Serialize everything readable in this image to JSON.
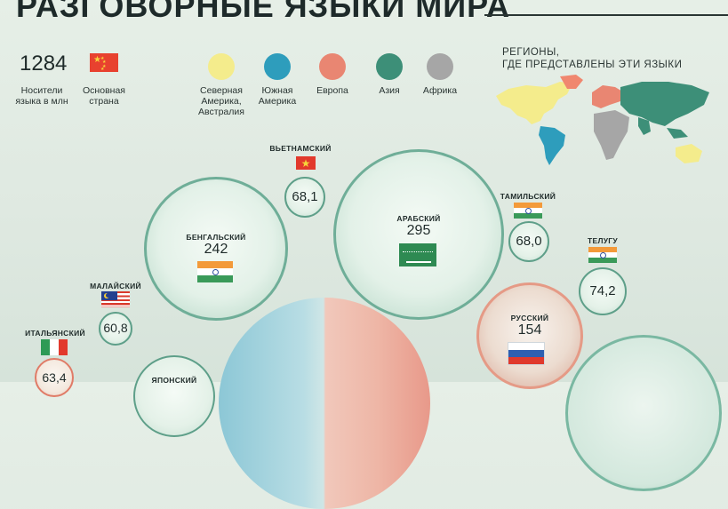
{
  "header": {
    "title": "РАЗГОВОРНЫЕ ЯЗЫКИ МИРА"
  },
  "legend": {
    "speakers_number": "1284",
    "speakers_label_line1": "Носители",
    "speakers_label_line2": "языка в млн",
    "country_label_line1": "Основная",
    "country_label_line2": "страна",
    "country_flag_icon": "china-flag-icon"
  },
  "regions": [
    {
      "line1": "Северная",
      "line2": "Америка,",
      "line3": "Австралия",
      "color": "#f4ec8c"
    },
    {
      "line1": "Южная",
      "line2": "Америка",
      "line3": "",
      "color": "#2e9dbc"
    },
    {
      "line1": "Европа",
      "line2": "",
      "line3": "",
      "color": "#e98672"
    },
    {
      "line1": "Азия",
      "line2": "",
      "line3": "",
      "color": "#3d8f78"
    },
    {
      "line1": "Африка",
      "line2": "",
      "line3": "",
      "color": "#a6a6a6"
    }
  ],
  "map": {
    "title_line1": "РЕГИОНЫ,",
    "title_line2": "ГДЕ ПРЕДСТАВЛЕНЫ ЭТИ ЯЗЫКИ"
  },
  "languages": {
    "vietnamese": {
      "name": "ВЬЕТНАМСКИЙ",
      "value": "68,1",
      "flag": "vietnam-flag-icon"
    },
    "bengali": {
      "name": "БЕНГАЛЬСКИЙ",
      "value": "242",
      "flag": "india-flag-icon"
    },
    "arabic": {
      "name": "АРАБСКИЙ",
      "value": "295",
      "flag": "saudi-arabia-flag-icon"
    },
    "tamil": {
      "name": "ТАМИЛЬСКИЙ",
      "value": "68,0",
      "flag": "india-flag-icon"
    },
    "telugu": {
      "name": "ТЕЛУГУ",
      "value": "74,2",
      "flag": "india-flag-icon"
    },
    "malay": {
      "name": "МАЛАЙСКИЙ",
      "value": "60,8",
      "flag": "malaysia-flag-icon"
    },
    "russian": {
      "name": "РУССКИЙ",
      "value": "154",
      "flag": "russia-flag-icon"
    },
    "italian": {
      "name": "ИТАЛЬЯНСКИЙ",
      "value": "63,4",
      "flag": "italy-flag-icon"
    },
    "japanese": {
      "name": "ЯПОНСКИЙ"
    }
  }
}
